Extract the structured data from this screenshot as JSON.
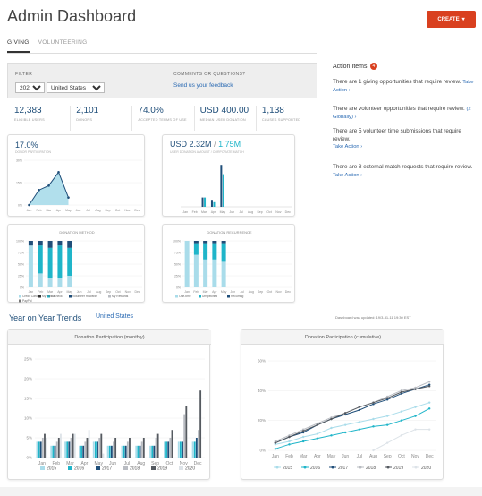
{
  "header": {
    "title": "Admin Dashboard",
    "create_label": "CREATE"
  },
  "tabs": [
    {
      "label": "GIVING"
    },
    {
      "label": "VOLUNTEERING"
    }
  ],
  "filter": {
    "label": "FILTER",
    "year": "2020",
    "country": "United States",
    "comments_label": "COMMENTS OR QUESTIONS?",
    "feedback_link": "Send us your feedback"
  },
  "stats": [
    {
      "value": "12,383",
      "label": "ELIGIBLE USERS"
    },
    {
      "value": "2,101",
      "label": "DONORS"
    },
    {
      "value": "74.0%",
      "label": "ACCEPTED TERMS OF USE"
    },
    {
      "value": "USD 400.00",
      "label": "MEDIAN USER DONATION"
    },
    {
      "value": "1,138",
      "label": "CAUSES SUPPORTED"
    }
  ],
  "sidebar": {
    "title": "Action Items",
    "badge": "4",
    "items": [
      {
        "text": "There are 1 giving opportunities that require review.",
        "link": "Take Action"
      },
      {
        "text": "There are volunteer opportunities that require review.",
        "link": "(2 Globally)"
      },
      {
        "text": "There are 5 volunteer time submissions that require review.",
        "link": "Take Action"
      },
      {
        "text": "There are 8 external match requests that require review.",
        "link": "Take Action"
      }
    ]
  },
  "months": [
    "Jan",
    "Feb",
    "Mar",
    "Apr",
    "May",
    "Jun",
    "Jul",
    "Aug",
    "Sep",
    "Oct",
    "Nov",
    "Dec"
  ],
  "colors": {
    "accent": "#d9401f",
    "navy": "#1f4e79",
    "teal": "#1fb5c9",
    "light": "#a9dcea",
    "link": "#2a6ab3"
  },
  "mini_charts": {
    "participation": {
      "headline": "17.0%",
      "subtitle": "DONOR PARTICIPATION",
      "yticks": [
        "30%",
        "15%",
        "0%"
      ]
    },
    "donations": {
      "headline": "USD 2.32M",
      "headline2": "1.75M",
      "subtitle": "USER DONATION AMOUNT / CORPORATE MATCH"
    },
    "method": {
      "title": "DONATION METHOD",
      "yticks": [
        "100%",
        "75%",
        "50%",
        "25%",
        "0%"
      ],
      "legend": [
        "Credit Card",
        "E-Check",
        "Volunteer Rewards",
        "My Rewards",
        "PayPal",
        "My Funds"
      ]
    },
    "recurrence": {
      "title": "DONATION RECURRENCE",
      "yticks": [
        "100%",
        "75%",
        "50%",
        "25%",
        "0%"
      ],
      "legend": [
        "One-time",
        "Unspecified",
        "Recurring"
      ]
    }
  },
  "trends": {
    "title": "Year on Year Trends",
    "country": "United States",
    "updated": "Dashboard was updated: 19/3-31-11 19:30 EST"
  },
  "chart_data": [
    {
      "type": "area",
      "title": "17.0%",
      "categories": [
        "Jan",
        "Feb",
        "Mar",
        "Apr",
        "May"
      ],
      "values": [
        0,
        10,
        13,
        22,
        5
      ],
      "ylim": [
        0,
        30
      ]
    },
    {
      "type": "bar",
      "title": "USD 2.32M / 1.75M",
      "categories": [
        "Jan",
        "Feb",
        "Mar",
        "Apr",
        "May",
        "Jun",
        "Jul",
        "Aug",
        "Sep",
        "Oct",
        "Nov",
        "Dec"
      ],
      "series": [
        {
          "name": "User Donation",
          "values": [
            0,
            0,
            0.2,
            0.15,
            0.9,
            0,
            0,
            0,
            0,
            0,
            0,
            0
          ]
        },
        {
          "name": "Corporate Match",
          "values": [
            0,
            0,
            0.2,
            0.1,
            0.7,
            0,
            0,
            0,
            0,
            0,
            0,
            0
          ]
        }
      ]
    },
    {
      "type": "bar",
      "title": "DONATION METHOD",
      "categories": [
        "Jan",
        "Feb",
        "Mar",
        "Apr",
        "May"
      ],
      "series": [
        {
          "name": "Credit Card",
          "values": [
            90,
            30,
            20,
            20,
            25
          ]
        },
        {
          "name": "E-Check",
          "values": [
            0,
            60,
            65,
            70,
            60
          ]
        },
        {
          "name": "Volunteer Rewards",
          "values": [
            10,
            10,
            15,
            10,
            15
          ]
        }
      ],
      "ylim": [
        0,
        100
      ]
    },
    {
      "type": "bar",
      "title": "DONATION RECURRENCE",
      "categories": [
        "Jan",
        "Feb",
        "Mar",
        "Apr",
        "May"
      ],
      "series": [
        {
          "name": "One-time",
          "values": [
            100,
            70,
            60,
            60,
            55
          ]
        },
        {
          "name": "Unspecified",
          "values": [
            0,
            25,
            35,
            35,
            40
          ]
        },
        {
          "name": "Recurring",
          "values": [
            0,
            5,
            5,
            5,
            5
          ]
        }
      ],
      "ylim": [
        0,
        100
      ]
    },
    {
      "type": "bar",
      "title": "Donation Participation (monthly)",
      "categories": [
        "Jan",
        "Feb",
        "Mar",
        "Apr",
        "May",
        "Jun",
        "Jul",
        "Aug",
        "Sep",
        "Oct",
        "Nov",
        "Dec"
      ],
      "series": [
        {
          "name": "2015",
          "values": [
            4,
            3,
            4,
            3,
            4,
            3,
            3,
            3,
            3,
            4,
            4,
            4
          ]
        },
        {
          "name": "2016",
          "values": [
            4,
            3,
            4,
            3,
            4,
            3,
            3,
            3,
            3,
            4,
            4,
            4
          ]
        },
        {
          "name": "2017",
          "values": [
            4,
            3,
            4,
            3,
            4,
            3,
            3,
            3,
            3,
            4,
            4,
            5
          ]
        },
        {
          "name": "2018",
          "values": [
            5,
            4,
            5,
            4,
            5,
            4,
            4,
            4,
            5,
            5,
            11,
            7
          ]
        },
        {
          "name": "2019",
          "values": [
            6,
            5,
            6,
            5,
            6,
            5,
            5,
            5,
            6,
            7,
            13,
            17
          ]
        },
        {
          "name": "2020",
          "values": [
            5,
            6,
            6,
            7,
            1,
            0,
            0,
            0,
            0,
            0,
            0,
            0
          ]
        }
      ],
      "ylim": [
        0,
        25
      ]
    },
    {
      "type": "line",
      "title": "Donation Participation (cumulative)",
      "categories": [
        "Jan",
        "Feb",
        "Mar",
        "Apr",
        "May",
        "Jun",
        "Jul",
        "Aug",
        "Sep",
        "Oct",
        "Nov",
        "Dec"
      ],
      "series": [
        {
          "name": "2015",
          "values": [
            4,
            6,
            9,
            11,
            15,
            17,
            19,
            21,
            23,
            26,
            29,
            32
          ]
        },
        {
          "name": "2016",
          "values": [
            1,
            4,
            6,
            8,
            10,
            12,
            14,
            16,
            17,
            20,
            23,
            28
          ]
        },
        {
          "name": "2017",
          "values": [
            5,
            9,
            12,
            17,
            21,
            24,
            27,
            31,
            34,
            38,
            41,
            44
          ]
        },
        {
          "name": "2018",
          "values": [
            6,
            10,
            14,
            18,
            22,
            25,
            29,
            32,
            36,
            40,
            42,
            46
          ]
        },
        {
          "name": "2019",
          "values": [
            5,
            9,
            13,
            17,
            21,
            25,
            29,
            32,
            35,
            39,
            41,
            43
          ]
        },
        {
          "name": "2020",
          "values": [
            null,
            null,
            null,
            null,
            null,
            null,
            null,
            0,
            5,
            10,
            14,
            14
          ]
        }
      ],
      "ylim": [
        0,
        60
      ]
    }
  ]
}
